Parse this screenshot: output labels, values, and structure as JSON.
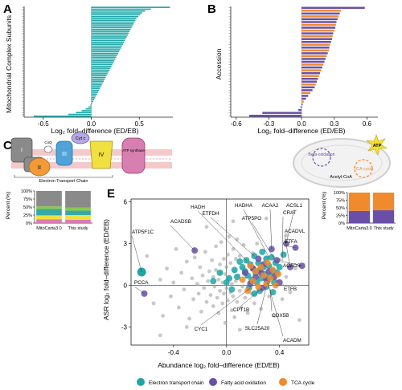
{
  "panels": {
    "A": {
      "letter": "A",
      "ylabel": "Mitochondrial Complex Subunits"
    },
    "B": {
      "letter": "B",
      "ylabel": "Accession"
    },
    "C": {
      "letter": "C",
      "caption": "Electron Transport Chain"
    },
    "D": {
      "letter": "D"
    },
    "E": {
      "letter": "E"
    }
  },
  "diagram_c": {
    "complex_labels": [
      "I",
      "II",
      "III",
      "IV"
    ],
    "cyt_c": "Cyt c",
    "coq": "CoQ",
    "atp_synthase": "ATP synthase"
  },
  "diagram_d": {
    "beta_oxidation": "Beta-oxidation",
    "acetyl_coa": "Acetyl-CoA",
    "tca_cycle": "TCA cycle",
    "atp": "ATP"
  },
  "colors": {
    "teal": "#1fa6a6",
    "purple": "#6a4fa6",
    "orange": "#f08a2c",
    "grey": "#8a8a8a",
    "etc_blue": "#4fa3d9",
    "etc_yellow": "#f0e040",
    "etc_pink": "#d77fb0",
    "stack_teal": "#33a9a8",
    "stack_green": "#8cc94a"
  },
  "legend": {
    "items": [
      {
        "label": "Electron transport chain",
        "color": "#1fa6a6"
      },
      {
        "label": "Fatty acid oxidation",
        "color": "#6a4fa6"
      },
      {
        "label": "TCA cycle",
        "color": "#f08a2c"
      }
    ]
  },
  "chart_data": [
    {
      "panel": "A",
      "type": "bar",
      "orientation": "horizontal",
      "xlabel": "Log₂ fold–difference (ED/EB)",
      "ylabel": "Mitochondrial Complex Subunits",
      "xlim": [
        -0.7,
        0.85
      ],
      "xticks": [
        -0.5,
        0.0,
        0.5
      ],
      "xtick_labels": [
        "-0.5",
        "0.0",
        "0.5"
      ],
      "values": [
        0.82,
        0.62,
        0.56,
        0.53,
        0.51,
        0.49,
        0.47,
        0.46,
        0.45,
        0.44,
        0.43,
        0.42,
        0.41,
        0.4,
        0.39,
        0.38,
        0.37,
        0.36,
        0.35,
        0.34,
        0.33,
        0.32,
        0.31,
        0.3,
        0.29,
        0.28,
        0.27,
        0.26,
        0.25,
        0.24,
        0.23,
        0.22,
        0.21,
        0.2,
        0.19,
        0.18,
        0.17,
        0.16,
        0.15,
        0.14,
        0.13,
        0.12,
        0.11,
        0.1,
        0.09,
        0.08,
        0.07,
        0.06,
        0.05,
        0.04,
        0.03,
        0.02,
        0.01,
        -0.01,
        -0.03,
        -0.06,
        -0.1,
        -0.16,
        -0.24,
        -0.6
      ],
      "bar_color": "#1fa6a6"
    },
    {
      "panel": "B",
      "type": "bar",
      "orientation": "horizontal",
      "xlabel": "Log₂ fold–difference (ED/EB)",
      "ylabel": "Accession",
      "xlim": [
        -0.65,
        0.7
      ],
      "xticks": [
        -0.6,
        -0.3,
        0.0,
        0.3,
        0.6
      ],
      "xtick_labels": [
        "-0.6",
        "-0.3",
        "0.0",
        "0.3",
        "0.6"
      ],
      "series": [
        {
          "name": "Fatty acid oxidation",
          "color": "#6a4fa6"
        },
        {
          "name": "TCA cycle",
          "color": "#f08a2c"
        }
      ],
      "values": [
        0.58,
        0.36,
        0.35,
        0.34,
        0.33,
        0.32,
        0.315,
        0.31,
        0.3,
        0.29,
        0.285,
        0.28,
        0.27,
        0.26,
        0.255,
        0.25,
        0.24,
        0.23,
        0.22,
        0.21,
        0.2,
        0.19,
        0.18,
        0.17,
        0.16,
        0.15,
        0.14,
        0.13,
        0.12,
        0.1,
        0.08,
        0.06,
        0.04,
        0.02,
        0.01,
        -0.01,
        -0.03,
        -0.36,
        -0.48
      ],
      "groups": [
        0,
        1,
        0,
        1,
        0,
        0,
        1,
        0,
        1,
        0,
        1,
        0,
        0,
        1,
        0,
        1,
        0,
        1,
        0,
        0,
        1,
        0,
        1,
        0,
        1,
        0,
        0,
        1,
        0,
        0,
        1,
        0,
        0,
        1,
        0,
        0,
        0,
        0,
        0
      ]
    },
    {
      "panel": "C",
      "type": "bar",
      "stacked": true,
      "ylabel": "Percent (%)",
      "ylim": [
        0,
        100
      ],
      "yticks": [
        "0%",
        "25%",
        "50%",
        "75%",
        "100%"
      ],
      "categories": [
        "MitoCarta3.0",
        "This study"
      ],
      "segments": [
        {
          "color": "#d77fb0",
          "values": [
            12,
            10
          ]
        },
        {
          "color": "#f0e040",
          "values": [
            12,
            15
          ]
        },
        {
          "color": "#33a9a8",
          "values": [
            20,
            14
          ]
        },
        {
          "color": "#8cc94a",
          "values": [
            8,
            9
          ]
        },
        {
          "color": "#8a8a8a",
          "values": [
            48,
            52
          ]
        }
      ]
    },
    {
      "panel": "D",
      "type": "bar",
      "stacked": true,
      "ylabel": "Percent (%)",
      "ylim": [
        0,
        100
      ],
      "yticks": [
        "0%",
        "25%",
        "50%",
        "75%",
        "100%"
      ],
      "categories": [
        "MitoCarta3.0",
        "This study"
      ],
      "segments": [
        {
          "color": "#6a4fa6",
          "values": [
            40,
            42
          ]
        },
        {
          "color": "#f08a2c",
          "values": [
            60,
            58
          ]
        }
      ]
    },
    {
      "panel": "E",
      "type": "scatter",
      "xlabel": "Abundance log₂ fold–difference (ED/EB)",
      "ylabel": "ASR log₂ fold–difference (ED/EB)",
      "xlim": [
        -0.72,
        0.62
      ],
      "ylim": [
        -4.3,
        6.2
      ],
      "xticks": [
        -0.4,
        0.0,
        0.4
      ],
      "xtick_labels": [
        "-0.4",
        "0.0",
        "0.4"
      ],
      "yticks": [
        -3,
        0,
        3,
        6
      ],
      "ytick_labels": [
        "-3",
        "0",
        "3",
        "6"
      ],
      "grey_points": [
        [
          -0.6,
          2.1
        ],
        [
          -0.55,
          -1.3
        ],
        [
          -0.5,
          0.4
        ],
        [
          -0.48,
          -2.2
        ],
        [
          -0.45,
          1.2
        ],
        [
          -0.42,
          -0.8
        ],
        [
          -0.4,
          0.2
        ],
        [
          -0.38,
          2.6
        ],
        [
          -0.36,
          -1.6
        ],
        [
          -0.34,
          0.9
        ],
        [
          -0.32,
          -0.3
        ],
        [
          -0.3,
          1.7
        ],
        [
          -0.28,
          -2.4
        ],
        [
          -0.26,
          0.5
        ],
        [
          -0.25,
          -1.0
        ],
        [
          -0.24,
          2.0
        ],
        [
          -0.22,
          0.1
        ],
        [
          -0.21,
          -0.6
        ],
        [
          -0.2,
          1.3
        ],
        [
          -0.19,
          -1.9
        ],
        [
          -0.18,
          0.7
        ],
        [
          -0.17,
          -0.2
        ],
        [
          -0.16,
          2.4
        ],
        [
          -0.15,
          -1.2
        ],
        [
          -0.14,
          0.3
        ],
        [
          -0.13,
          1.0
        ],
        [
          -0.12,
          -0.7
        ],
        [
          -0.11,
          1.8
        ],
        [
          -0.1,
          -1.5
        ],
        [
          -0.1,
          0.6
        ],
        [
          -0.09,
          -0.1
        ],
        [
          -0.08,
          2.8
        ],
        [
          -0.08,
          1.1
        ],
        [
          -0.07,
          -0.9
        ],
        [
          -0.06,
          0.4
        ],
        [
          -0.06,
          -2.0
        ],
        [
          -0.05,
          1.5
        ],
        [
          -0.05,
          -0.4
        ],
        [
          -0.04,
          0.9
        ],
        [
          -0.04,
          3.1
        ],
        [
          -0.03,
          -1.3
        ],
        [
          -0.03,
          0.2
        ],
        [
          -0.02,
          1.9
        ],
        [
          -0.02,
          -0.6
        ],
        [
          -0.01,
          0.8
        ],
        [
          -0.01,
          -2.7
        ],
        [
          0.0,
          1.3
        ],
        [
          0.0,
          -0.2
        ],
        [
          0.01,
          2.2
        ],
        [
          0.01,
          -1.1
        ],
        [
          0.02,
          0.5
        ],
        [
          0.02,
          3.5
        ],
        [
          0.03,
          -0.5
        ],
        [
          0.03,
          1.6
        ],
        [
          0.04,
          -1.8
        ],
        [
          0.04,
          0.1
        ],
        [
          0.05,
          2.6
        ],
        [
          0.05,
          -0.8
        ],
        [
          0.06,
          1.0
        ],
        [
          0.06,
          -2.3
        ],
        [
          0.07,
          0.3
        ],
        [
          0.07,
          1.9
        ],
        [
          0.08,
          -1.2
        ],
        [
          0.08,
          3.3
        ],
        [
          0.09,
          0.7
        ],
        [
          0.1,
          -0.4
        ],
        [
          0.1,
          2.1
        ],
        [
          0.11,
          -1.6
        ],
        [
          0.12,
          1.2
        ],
        [
          0.12,
          -0.1
        ],
        [
          0.13,
          2.9
        ],
        [
          0.14,
          -0.9
        ],
        [
          0.15,
          0.6
        ],
        [
          0.15,
          1.7
        ],
        [
          0.16,
          -2.0
        ],
        [
          0.17,
          0.2
        ],
        [
          0.18,
          1.4
        ],
        [
          0.19,
          -0.6
        ],
        [
          0.2,
          2.3
        ],
        [
          0.21,
          -1.3
        ],
        [
          0.22,
          0.9
        ],
        [
          0.23,
          3.0
        ],
        [
          0.24,
          -0.3
        ],
        [
          0.25,
          1.5
        ],
        [
          0.26,
          -1.7
        ],
        [
          0.28,
          0.5
        ],
        [
          0.3,
          2.0
        ],
        [
          0.32,
          -0.8
        ],
        [
          0.34,
          1.1
        ],
        [
          0.36,
          -2.2
        ],
        [
          0.38,
          0.3
        ],
        [
          0.4,
          1.8
        ],
        [
          0.42,
          -1.0
        ],
        [
          0.45,
          0.6
        ],
        [
          0.48,
          -0.5
        ],
        [
          0.52,
          1.2
        ],
        [
          -0.15,
          4.2
        ],
        [
          0.05,
          4.6
        ],
        [
          0.3,
          4.8
        ],
        [
          0.1,
          -3.2
        ],
        [
          -0.3,
          -3.0
        ],
        [
          0.45,
          3.6
        ],
        [
          -0.5,
          -3.6
        ],
        [
          0.55,
          -2.5
        ]
      ],
      "points": [
        {
          "group": "Electron transport chain",
          "color": "#1fa6a6",
          "xy": [
            [
              0.1,
              1.7
            ],
            [
              0.12,
              1.3
            ],
            [
              0.14,
              1.0
            ],
            [
              0.15,
              1.8
            ],
            [
              0.16,
              0.7
            ],
            [
              0.18,
              1.5
            ],
            [
              0.19,
              0.4
            ],
            [
              0.2,
              1.2
            ],
            [
              0.21,
              2.1
            ],
            [
              0.22,
              0.9
            ],
            [
              0.23,
              0.2
            ],
            [
              0.24,
              1.6
            ],
            [
              0.25,
              1.1
            ],
            [
              0.26,
              0.5
            ],
            [
              0.27,
              2.4
            ],
            [
              0.28,
              1.3
            ],
            [
              0.29,
              0.8
            ],
            [
              0.3,
              1.9
            ],
            [
              0.31,
              0.3
            ],
            [
              0.32,
              1.4
            ],
            [
              0.33,
              0.6
            ],
            [
              0.34,
              2.0
            ],
            [
              0.35,
              1.0
            ],
            [
              0.36,
              0.2
            ],
            [
              0.37,
              1.6
            ],
            [
              0.38,
              0.9
            ],
            [
              0.4,
              1.3
            ],
            [
              0.43,
              2.2
            ],
            [
              0.08,
              0.6
            ],
            [
              0.06,
              1.1
            ],
            [
              0.04,
              -0.3
            ],
            [
              0.02,
              0.5
            ],
            [
              0.0,
              0.2
            ],
            [
              0.17,
              -0.2
            ],
            [
              0.21,
              -0.6
            ],
            [
              0.25,
              -0.4
            ],
            [
              0.3,
              -0.1
            ],
            [
              0.35,
              -0.5
            ],
            [
              -0.1,
              0.3
            ],
            [
              -0.05,
              0.9
            ]
          ]
        },
        {
          "group": "Fatty acid oxidation",
          "color": "#6a4fa6",
          "xy": [
            [
              0.2,
              1.2
            ],
            [
              0.22,
              0.6
            ],
            [
              0.24,
              1.9
            ],
            [
              0.26,
              0.9
            ],
            [
              0.27,
              -0.2
            ],
            [
              0.28,
              1.5
            ],
            [
              0.3,
              0.4
            ],
            [
              0.32,
              1.0
            ],
            [
              0.34,
              2.6
            ],
            [
              0.36,
              0.6
            ],
            [
              0.38,
              1.8
            ],
            [
              0.4,
              0.2
            ],
            [
              0.45,
              3.0
            ],
            [
              0.48,
              1.3
            ],
            [
              0.52,
              2.7
            ],
            [
              0.57,
              1.4
            ],
            [
              -0.24,
              2.5
            ],
            [
              -0.62,
              -0.6
            ],
            [
              0.14,
              0.9
            ],
            [
              0.18,
              0.1
            ]
          ]
        },
        {
          "group": "TCA cycle",
          "color": "#f08a2c",
          "xy": [
            [
              0.18,
              1.4
            ],
            [
              0.2,
              0.3
            ],
            [
              0.22,
              1.0
            ],
            [
              0.24,
              -0.1
            ],
            [
              0.26,
              1.3
            ],
            [
              0.28,
              0.7
            ],
            [
              0.3,
              0.1
            ],
            [
              0.31,
              1.6
            ],
            [
              0.33,
              0.5
            ],
            [
              0.35,
              1.1
            ],
            [
              0.37,
              0.0
            ],
            [
              0.39,
              0.8
            ],
            [
              0.16,
              -0.4
            ],
            [
              0.12,
              0.4
            ]
          ]
        }
      ],
      "highlight": [
        [
          -0.64,
          0.95
        ]
      ],
      "annotations": [
        {
          "label": "ATP5F1C",
          "x": -0.64,
          "y": 0.95
        },
        {
          "label": "PCCA",
          "x": -0.62,
          "y": -0.6
        },
        {
          "label": "ACADSB",
          "x": -0.24,
          "y": 2.5
        },
        {
          "label": "HADH",
          "x": 0.15,
          "y": 1.8
        },
        {
          "label": "ETFDH",
          "x": 0.21,
          "y": 2.1
        },
        {
          "label": "HADHA",
          "x": 0.32,
          "y": 2.0
        },
        {
          "label": "ATP5PO",
          "x": 0.36,
          "y": 1.9
        },
        {
          "label": "ACAA2",
          "x": 0.34,
          "y": 2.6
        },
        {
          "label": "CRAT",
          "x": 0.42,
          "y": 1.6
        },
        {
          "label": "ACSL1",
          "x": 0.45,
          "y": 3.0
        },
        {
          "label": "ACADVL",
          "x": 0.48,
          "y": 1.3
        },
        {
          "label": "ETFA",
          "x": 0.52,
          "y": 2.7
        },
        {
          "label": "ACADS",
          "x": 0.57,
          "y": 1.4
        },
        {
          "label": "ETFB",
          "x": 0.37,
          "y": 0.0
        },
        {
          "label": "COX5B",
          "x": 0.33,
          "y": -0.3
        },
        {
          "label": "CPT1B",
          "x": 0.27,
          "y": -0.2
        },
        {
          "label": "SLC25A20",
          "x": 0.3,
          "y": -0.1
        },
        {
          "label": "ACADM",
          "x": 0.31,
          "y": 0.2
        },
        {
          "label": "CYC1",
          "x": 0.18,
          "y": -0.2
        }
      ]
    }
  ]
}
